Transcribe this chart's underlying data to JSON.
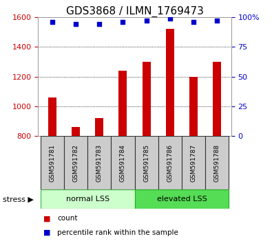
{
  "title": "GDS3868 / ILMN_1769473",
  "samples": [
    "GSM591781",
    "GSM591782",
    "GSM591783",
    "GSM591784",
    "GSM591785",
    "GSM591786",
    "GSM591787",
    "GSM591788"
  ],
  "counts": [
    1060,
    860,
    920,
    1240,
    1300,
    1520,
    1200,
    1300
  ],
  "percentile_ranks": [
    96,
    94,
    94,
    96,
    97,
    99,
    96,
    97
  ],
  "ylim_left": [
    800,
    1600
  ],
  "ylim_right": [
    0,
    100
  ],
  "yticks_left": [
    800,
    1000,
    1200,
    1400,
    1600
  ],
  "yticks_right": [
    0,
    25,
    50,
    75,
    100
  ],
  "bar_color": "#cc0000",
  "dot_color": "#0000cc",
  "group1_label": "normal LSS",
  "group2_label": "elevated LSS",
  "group1_color": "#ccffcc",
  "group2_color": "#55dd55",
  "group_divider": 4,
  "stress_label": "stress ▶",
  "legend_count_label": "count",
  "legend_pct_label": "percentile rank within the sample",
  "sample_box_color": "#cccccc",
  "background_color": "#ffffff",
  "plot_bg_color": "#ffffff",
  "title_fontsize": 11,
  "tick_fontsize": 8,
  "label_fontsize": 8
}
